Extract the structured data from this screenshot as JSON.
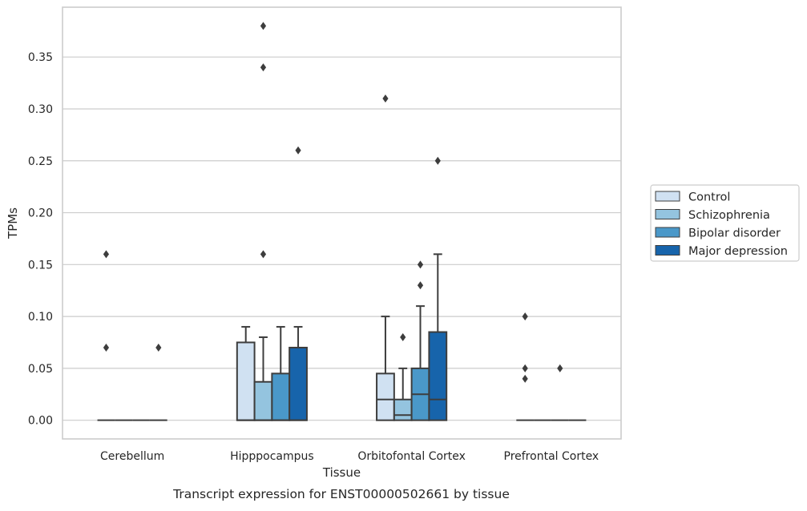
{
  "chart_data": {
    "type": "box",
    "xlabel": "Tissue",
    "ylabel": "TPMs",
    "caption": "Transcript expression for ENST00000502661 by tissue",
    "categories": [
      "Cerebellum",
      "Hipppocampus",
      "Orbitofontal Cortex",
      "Prefrontal Cortex"
    ],
    "ylim": [
      -0.018,
      0.398
    ],
    "yticks": [
      0.0,
      0.05,
      0.1,
      0.15,
      0.2,
      0.25,
      0.3,
      0.35
    ],
    "ytick_labels": [
      "0.00",
      "0.05",
      "0.10",
      "0.15",
      "0.20",
      "0.25",
      "0.30",
      "0.35"
    ],
    "grid": "horizontal",
    "legend_placement": "outside-right",
    "series": [
      {
        "name": "Control",
        "color": "#d0e1f2",
        "boxes": [
          {
            "q1": 0.0,
            "median": 0.0,
            "q3": 0.0,
            "whislo": 0.0,
            "whishi": 0.0,
            "fliers": [
              0.16,
              0.07
            ]
          },
          {
            "q1": 0.0,
            "median": 0.0,
            "q3": 0.075,
            "whislo": 0.0,
            "whishi": 0.09,
            "fliers": []
          },
          {
            "q1": 0.0,
            "median": 0.02,
            "q3": 0.045,
            "whislo": 0.0,
            "whishi": 0.1,
            "fliers": [
              0.31
            ]
          },
          {
            "q1": 0.0,
            "median": 0.0,
            "q3": 0.0,
            "whislo": 0.0,
            "whishi": 0.0,
            "fliers": [
              0.1,
              0.05,
              0.04
            ]
          }
        ]
      },
      {
        "name": "Schizophrenia",
        "color": "#94c4df",
        "boxes": [
          {
            "q1": 0.0,
            "median": 0.0,
            "q3": 0.0,
            "whislo": 0.0,
            "whishi": 0.0,
            "fliers": []
          },
          {
            "q1": 0.0,
            "median": 0.0,
            "q3": 0.037,
            "whislo": 0.0,
            "whishi": 0.08,
            "fliers": [
              0.38,
              0.34,
              0.16
            ]
          },
          {
            "q1": 0.0,
            "median": 0.005,
            "q3": 0.02,
            "whislo": 0.0,
            "whishi": 0.05,
            "fliers": [
              0.08
            ]
          },
          {
            "q1": 0.0,
            "median": 0.0,
            "q3": 0.0,
            "whislo": 0.0,
            "whishi": 0.0,
            "fliers": []
          }
        ]
      },
      {
        "name": "Bipolar disorder",
        "color": "#4a98c9",
        "boxes": [
          {
            "q1": 0.0,
            "median": 0.0,
            "q3": 0.0,
            "whislo": 0.0,
            "whishi": 0.0,
            "fliers": []
          },
          {
            "q1": 0.0,
            "median": 0.0,
            "q3": 0.045,
            "whislo": 0.0,
            "whishi": 0.09,
            "fliers": []
          },
          {
            "q1": 0.0,
            "median": 0.025,
            "q3": 0.05,
            "whislo": 0.0,
            "whishi": 0.11,
            "fliers": [
              0.15,
              0.13
            ]
          },
          {
            "q1": 0.0,
            "median": 0.0,
            "q3": 0.0,
            "whislo": 0.0,
            "whishi": 0.0,
            "fliers": [
              0.05
            ]
          }
        ]
      },
      {
        "name": "Major depression",
        "color": "#1764ab",
        "boxes": [
          {
            "q1": 0.0,
            "median": 0.0,
            "q3": 0.0,
            "whislo": 0.0,
            "whishi": 0.0,
            "fliers": [
              0.07
            ]
          },
          {
            "q1": 0.0,
            "median": 0.0,
            "q3": 0.07,
            "whislo": 0.0,
            "whishi": 0.09,
            "fliers": [
              0.26
            ]
          },
          {
            "q1": 0.0,
            "median": 0.02,
            "q3": 0.085,
            "whislo": 0.0,
            "whishi": 0.16,
            "fliers": [
              0.25
            ]
          },
          {
            "q1": 0.0,
            "median": 0.0,
            "q3": 0.0,
            "whislo": 0.0,
            "whishi": 0.0,
            "fliers": []
          }
        ]
      }
    ]
  }
}
